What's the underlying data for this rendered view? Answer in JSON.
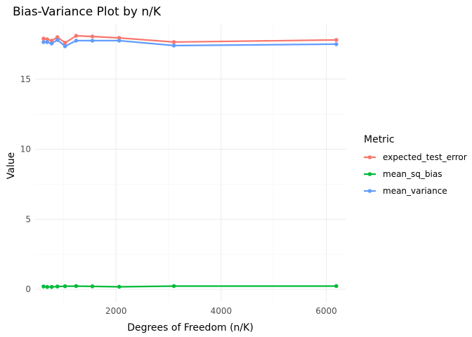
{
  "chart_data": {
    "type": "line",
    "title": "Bias-Variance Plot by n/K",
    "xlabel": "Degrees of Freedom (n/K)",
    "ylabel": "Value",
    "xlim": [
      460,
      6380
    ],
    "ylim": [
      -0.9,
      18.9
    ],
    "x_ticks": [
      2000,
      4000,
      6000
    ],
    "y_ticks": [
      0,
      5,
      10,
      15
    ],
    "grid": true,
    "legend_title": "Metric",
    "legend_position": "right",
    "x": [
      620,
      690,
      775,
      885,
      1030,
      1240,
      1550,
      2060,
      3100,
      6190
    ],
    "series": [
      {
        "name": "expected_test_error",
        "color": "#F8766D",
        "values": [
          17.9,
          17.85,
          17.75,
          18.0,
          17.6,
          18.1,
          18.05,
          17.95,
          17.65,
          17.8
        ]
      },
      {
        "name": "mean_sq_bias",
        "color": "#00BA38",
        "values": [
          0.2,
          0.17,
          0.17,
          0.2,
          0.22,
          0.23,
          0.21,
          0.18,
          0.23,
          0.23
        ]
      },
      {
        "name": "mean_variance",
        "color": "#619CFF",
        "values": [
          17.65,
          17.65,
          17.55,
          17.8,
          17.35,
          17.75,
          17.75,
          17.75,
          17.4,
          17.5
        ]
      }
    ]
  }
}
